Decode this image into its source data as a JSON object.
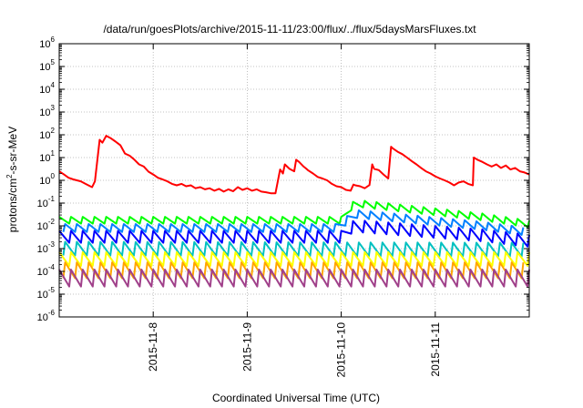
{
  "chart_data": {
    "type": "line",
    "title": "/data/run/goesPlots/archive/2015-11-11/23:00/flux/../flux/5daysMarsFluxes.txt",
    "xlabel": "Coordinated Universal Time (UTC)",
    "ylabel": {
      "pre": "protons/cm",
      "sup": "2",
      "post": "-s-sr-MeV"
    },
    "y_scale": "log",
    "ylim": [
      1e-06,
      1000000.0
    ],
    "xlim": [
      "2015-11-07T00:00",
      "2015-11-12T00:00"
    ],
    "grid": true,
    "legend": "none",
    "x_ticks": [
      {
        "label": "2015-11-8",
        "value": "2015-11-08T00:00"
      },
      {
        "label": "2015-11-9",
        "value": "2015-11-09T00:00"
      },
      {
        "label": "2015-11-10",
        "value": "2015-11-10T00:00"
      },
      {
        "label": "2015-11-11",
        "value": "2015-11-11T00:00"
      }
    ],
    "y_ticks": [
      {
        "exp": "-6",
        "value": 1e-06
      },
      {
        "exp": "-5",
        "value": 1e-05
      },
      {
        "exp": "-4",
        "value": 0.0001
      },
      {
        "exp": "-3",
        "value": 0.001
      },
      {
        "exp": "-2",
        "value": 0.01
      },
      {
        "exp": "-1",
        "value": 0.1
      },
      {
        "exp": "0",
        "value": 1
      },
      {
        "exp": "1",
        "value": 10
      },
      {
        "exp": "2",
        "value": 100
      },
      {
        "exp": "3",
        "value": 1000
      },
      {
        "exp": "4",
        "value": 10000
      },
      {
        "exp": "5",
        "value": 100000
      },
      {
        "exp": "6",
        "value": 1000000
      }
    ],
    "series": [
      {
        "color": "#ff0000",
        "x": [
          "2015-11-07T00:00",
          "2015-11-07T01:12",
          "2015-11-07T02:24",
          "2015-11-07T03:36",
          "2015-11-07T05:31",
          "2015-11-07T06:43",
          "2015-11-07T07:55",
          "2015-11-07T08:24",
          "2015-11-07T09:07",
          "2015-11-07T10:19",
          "2015-11-07T11:02",
          "2015-11-07T12:00",
          "2015-11-07T13:12",
          "2015-11-07T14:24",
          "2015-11-07T15:36",
          "2015-11-07T16:48",
          "2015-11-07T18:00",
          "2015-11-07T19:12",
          "2015-11-07T20:24",
          "2015-11-07T21:36",
          "2015-11-07T22:48",
          "2015-11-08T00:00",
          "2015-11-08T01:12",
          "2015-11-08T02:24",
          "2015-11-08T03:36",
          "2015-11-08T04:48",
          "2015-11-08T06:00",
          "2015-11-08T07:12",
          "2015-11-08T08:24",
          "2015-11-08T09:36",
          "2015-11-08T10:48",
          "2015-11-08T12:00",
          "2015-11-08T13:12",
          "2015-11-08T14:24",
          "2015-11-08T15:36",
          "2015-11-08T16:48",
          "2015-11-08T18:00",
          "2015-11-08T19:12",
          "2015-11-08T20:24",
          "2015-11-08T21:36",
          "2015-11-08T22:48",
          "2015-11-09T00:00",
          "2015-11-09T01:12",
          "2015-11-09T02:24",
          "2015-11-09T03:36",
          "2015-11-09T04:48",
          "2015-11-09T06:00",
          "2015-11-09T07:12",
          "2015-11-09T08:24",
          "2015-11-09T09:07",
          "2015-11-09T09:36",
          "2015-11-09T10:48",
          "2015-11-09T12:00",
          "2015-11-09T12:29",
          "2015-11-09T13:12",
          "2015-11-09T14:24",
          "2015-11-09T15:07",
          "2015-11-09T15:36",
          "2015-11-09T16:48",
          "2015-11-09T18:00",
          "2015-11-09T19:12",
          "2015-11-09T20:24",
          "2015-11-09T21:36",
          "2015-11-09T22:48",
          "2015-11-10T00:00",
          "2015-11-10T01:12",
          "2015-11-10T02:24",
          "2015-11-10T03:07",
          "2015-11-10T03:36",
          "2015-11-10T04:48",
          "2015-11-10T06:00",
          "2015-11-10T07:12",
          "2015-11-10T07:55",
          "2015-11-10T08:24",
          "2015-11-10T09:36",
          "2015-11-10T10:48",
          "2015-11-10T12:00",
          "2015-11-10T12:43",
          "2015-11-10T13:12",
          "2015-11-10T14:24",
          "2015-11-10T15:36",
          "2015-11-10T16:48",
          "2015-11-10T18:00",
          "2015-11-10T19:12",
          "2015-11-10T20:24",
          "2015-11-10T21:36",
          "2015-11-10T22:48",
          "2015-11-11T00:00",
          "2015-11-11T01:12",
          "2015-11-11T02:24",
          "2015-11-11T03:36",
          "2015-11-11T04:48",
          "2015-11-11T06:00",
          "2015-11-11T07:12",
          "2015-11-11T08:24",
          "2015-11-11T09:36",
          "2015-11-11T09:50",
          "2015-11-11T10:48",
          "2015-11-11T12:00",
          "2015-11-11T13:12",
          "2015-11-11T14:24",
          "2015-11-11T15:36",
          "2015-11-11T16:48",
          "2015-11-11T18:00",
          "2015-11-11T19:12",
          "2015-11-11T20:24",
          "2015-11-11T21:36",
          "2015-11-11T22:48",
          "2015-11-12T00:00"
        ],
        "y": [
          2.5,
          1.8,
          1.3,
          1.1,
          0.9,
          0.7,
          0.55,
          0.5,
          0.9,
          60,
          45,
          90,
          70,
          50,
          35,
          15,
          12,
          8,
          5,
          4,
          2.4,
          1.8,
          1.3,
          1.1,
          0.9,
          0.7,
          0.6,
          0.7,
          0.55,
          0.6,
          0.45,
          0.5,
          0.4,
          0.45,
          0.35,
          0.42,
          0.32,
          0.4,
          0.33,
          0.5,
          0.38,
          0.45,
          0.35,
          0.4,
          0.32,
          0.3,
          0.27,
          0.27,
          3,
          2,
          5,
          3.2,
          2.5,
          8,
          6.5,
          4,
          3.2,
          2.7,
          2,
          1.4,
          1.2,
          1,
          0.7,
          0.55,
          0.5,
          0.38,
          0.35,
          0.65,
          0.6,
          0.55,
          0.45,
          0.62,
          5,
          3.2,
          2.8,
          1.8,
          1.2,
          30,
          25,
          18,
          14,
          10,
          7,
          5,
          3.5,
          2.5,
          2,
          1.5,
          1.2,
          1,
          0.8,
          0.6,
          0.8,
          0.9,
          0.7,
          0.6,
          10,
          8,
          6.5,
          5,
          4,
          5,
          3.5,
          4.5,
          3,
          3.5,
          2.5,
          2.2,
          1.8
        ]
      },
      {
        "color": "#00ff00",
        "x": [
          "2015-11-07T00:00",
          "2015-11-10T00:00",
          "2015-11-10T01:12",
          "2015-11-10T03:36",
          "2015-11-11T12:00",
          "2015-11-12T00:00"
        ],
        "y": [
          0.025,
          0.025,
          0.06,
          0.14,
          0.035,
          0.017
        ],
        "sawtooth": {
          "start": "2015-11-07T00:00",
          "period_hours": 3,
          "dip_factor": 0.5
        }
      },
      {
        "color": "#0080ff",
        "x": [
          "2015-11-07T00:00",
          "2015-11-10T00:00",
          "2015-11-10T01:12",
          "2015-11-10T03:36",
          "2015-11-11T12:00",
          "2015-11-12T00:00"
        ],
        "y": [
          0.012,
          0.012,
          0.025,
          0.05,
          0.015,
          0.008
        ],
        "sawtooth": {
          "start": "2015-11-07T01:30",
          "period_hours": 3,
          "dip_factor": 0.45
        }
      },
      {
        "color": "#0000ff",
        "x": [
          "2015-11-07T00:00",
          "2015-11-10T00:00",
          "2015-11-10T01:12",
          "2015-11-10T03:36",
          "2015-11-11T12:00",
          "2015-11-12T00:00"
        ],
        "y": [
          0.006,
          0.006,
          0.012,
          0.018,
          0.007,
          0.004
        ],
        "sawtooth": {
          "start": "2015-11-07T00:00",
          "period_hours": 3,
          "dip_factor": 0.3
        }
      },
      {
        "color": "#00c0c0",
        "x": [
          "2015-11-07T00:00",
          "2015-11-12T00:00"
        ],
        "y": [
          0.002,
          0.0018
        ],
        "sawtooth": {
          "start": "2015-11-07T01:30",
          "period_hours": 3,
          "dip_factor": 0.25
        }
      },
      {
        "color": "#ffff00",
        "x": [
          "2015-11-07T00:00",
          "2015-11-12T00:00"
        ],
        "y": [
          0.0007,
          0.0007
        ],
        "sawtooth": {
          "start": "2015-11-07T00:00",
          "period_hours": 3,
          "dip_factor": 0.25
        }
      },
      {
        "color": "#ffa500",
        "x": [
          "2015-11-07T00:00",
          "2015-11-12T00:00"
        ],
        "y": [
          0.00025,
          0.00025
        ],
        "sawtooth": {
          "start": "2015-11-07T01:30",
          "period_hours": 3,
          "dip_factor": 0.2
        }
      },
      {
        "color": "#a0408a",
        "x": [
          "2015-11-07T00:00",
          "2015-11-12T00:00"
        ],
        "y": [
          0.00012,
          0.00012
        ],
        "sawtooth": {
          "start": "2015-11-07T00:00",
          "period_hours": 3,
          "dip_factor": 0.18
        }
      }
    ]
  }
}
